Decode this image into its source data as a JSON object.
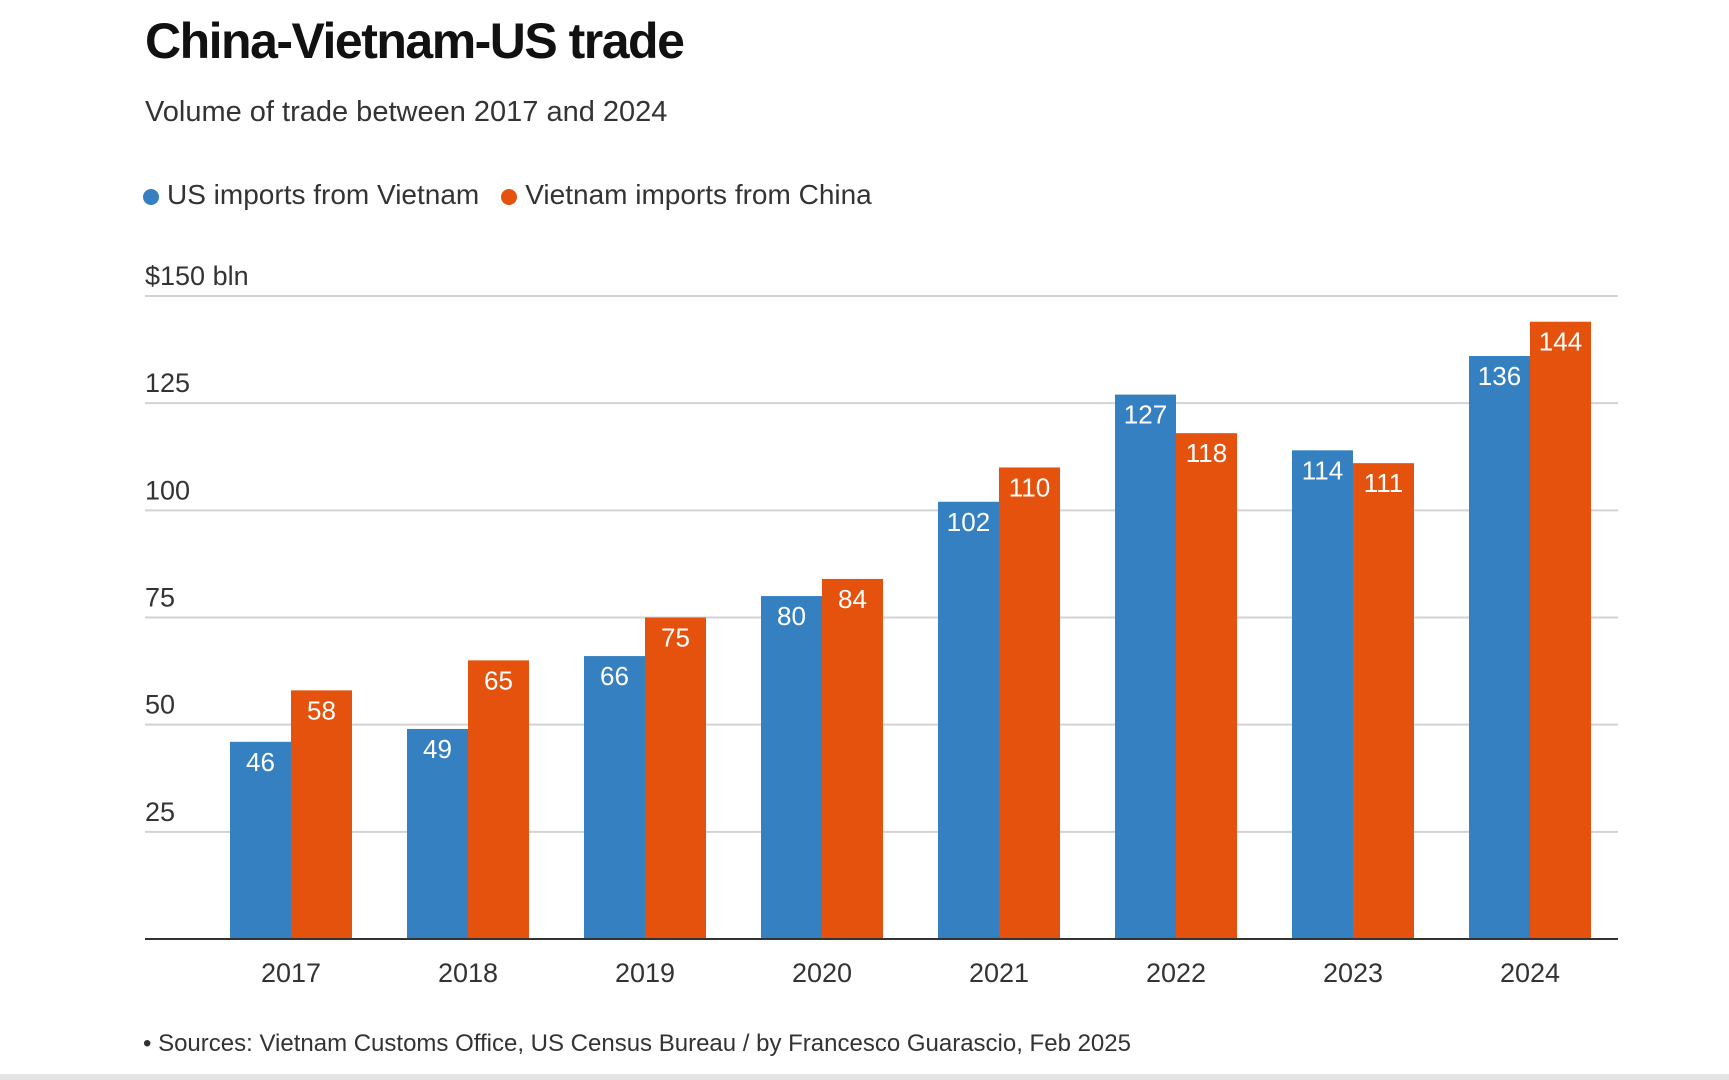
{
  "title": "China-Vietnam-US trade",
  "subtitle": "Volume of trade between 2017 and 2024",
  "source": "• Sources: Vietnam Customs Office, US Census Bureau / by Francesco Guarascio, Feb 2025",
  "colors": {
    "us": "#3580c0",
    "china": "#e4520d",
    "grid": "#d3d3d3",
    "axis": "#333333"
  },
  "chart_data": {
    "type": "bar",
    "title": "China-Vietnam-US trade",
    "subtitle": "Volume of trade between 2017 and 2024",
    "categories": [
      "2017",
      "2018",
      "2019",
      "2020",
      "2021",
      "2022",
      "2023",
      "2024"
    ],
    "series": [
      {
        "name": "US imports from Vietnam",
        "color": "#3580c0",
        "values": [
          46,
          49,
          66,
          80,
          102,
          127,
          114,
          136
        ]
      },
      {
        "name": "Vietnam imports from China",
        "color": "#e4520d",
        "values": [
          58,
          65,
          75,
          84,
          110,
          118,
          111,
          144
        ]
      }
    ],
    "yticks": [
      25,
      50,
      75,
      100,
      125,
      150
    ],
    "ytick_labels": [
      "25",
      "50",
      "75",
      "100",
      "125",
      "$150 bln"
    ],
    "ylim": [
      0,
      150
    ],
    "xlabel": "",
    "ylabel": "",
    "grid": true,
    "legend": "top-left",
    "data_labels": true
  }
}
